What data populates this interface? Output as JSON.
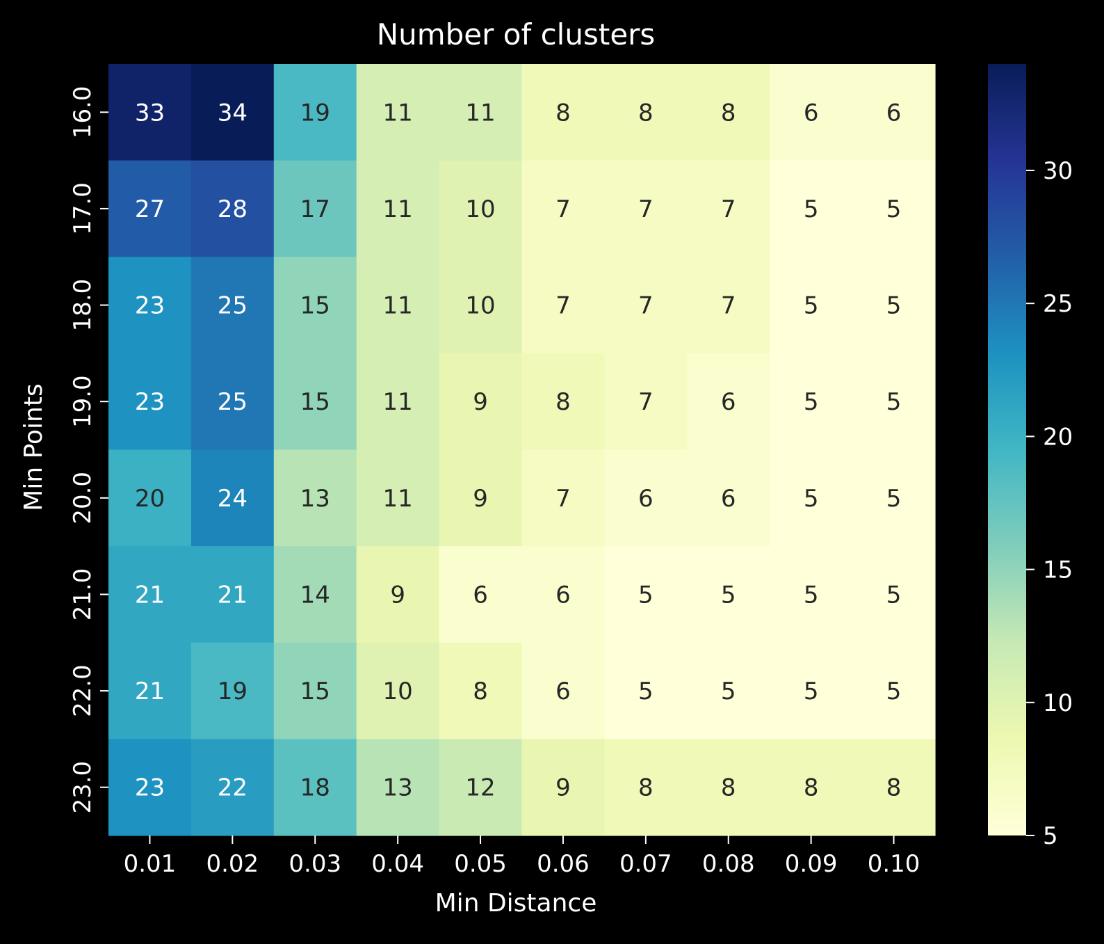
{
  "chart_data": {
    "type": "heatmap",
    "title": "Number of clusters",
    "xlabel": "Min Distance",
    "ylabel": "Min Points",
    "x_categories": [
      "0.01",
      "0.02",
      "0.03",
      "0.04",
      "0.05",
      "0.06",
      "0.07",
      "0.08",
      "0.09",
      "0.10"
    ],
    "y_categories": [
      "16.0",
      "17.0",
      "18.0",
      "19.0",
      "20.0",
      "21.0",
      "22.0",
      "23.0"
    ],
    "values": [
      [
        33,
        34,
        19,
        11,
        11,
        8,
        8,
        8,
        6,
        6
      ],
      [
        27,
        28,
        17,
        11,
        10,
        7,
        7,
        7,
        5,
        5
      ],
      [
        23,
        25,
        15,
        11,
        10,
        7,
        7,
        7,
        5,
        5
      ],
      [
        23,
        25,
        15,
        11,
        9,
        8,
        7,
        6,
        5,
        5
      ],
      [
        20,
        24,
        13,
        11,
        9,
        7,
        6,
        6,
        5,
        5
      ],
      [
        21,
        21,
        14,
        9,
        6,
        6,
        5,
        5,
        5,
        5
      ],
      [
        21,
        19,
        15,
        10,
        8,
        6,
        5,
        5,
        5,
        5
      ],
      [
        23,
        22,
        18,
        13,
        12,
        9,
        8,
        8,
        8,
        8
      ]
    ],
    "colormap": "YlGnBu",
    "color_range": [
      5,
      34
    ],
    "colorbar_ticks": [
      5,
      10,
      15,
      20,
      25,
      30
    ],
    "annotations": true,
    "background": "#000000",
    "text_color": "#ffffff"
  }
}
